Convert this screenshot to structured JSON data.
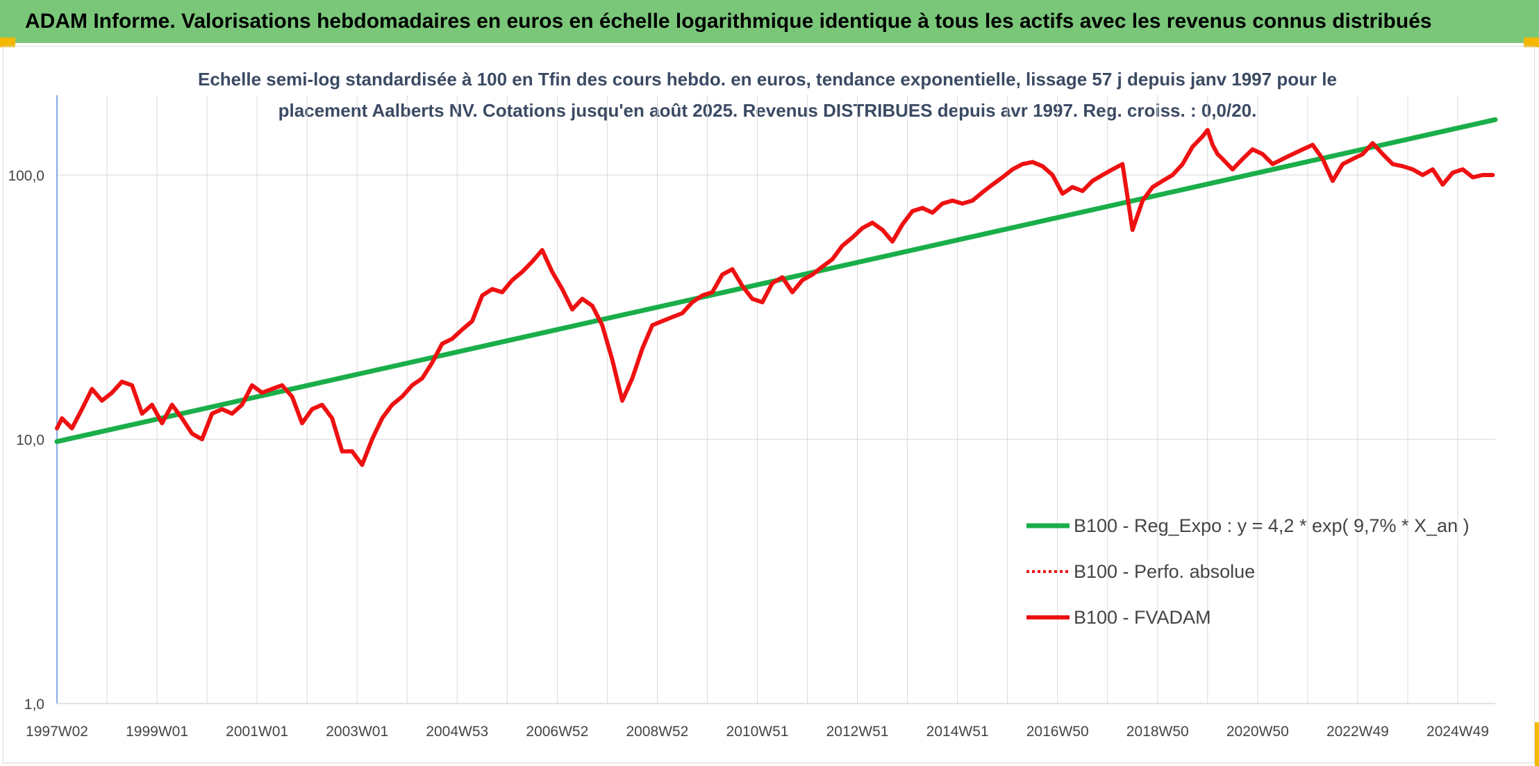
{
  "header": {
    "title": "ADAM Informe. Valorisations hebdomadaires en euros en échelle logarithmique identique à tous les actifs avec les revenus connus distribués"
  },
  "colors": {
    "header_bg": "#7ac77a",
    "trend": "#1aae4a",
    "series": "#ee1111",
    "grid": "#d9d9d9",
    "axis": "#5b8fd6",
    "accent": "#f5b800"
  },
  "chart_data": {
    "type": "line",
    "title_line1": "Echelle semi-log standardisée à 100 en Tfin des cours hebdo. en euros, tendance exponentielle, lissage 57 j depuis janv 1997 pour le",
    "title_line2": "placement Aalberts NV. Cotations jusqu'en août 2025. Revenus DISTRIBUES depuis avr 1997. Reg. croiss. : 0,0/20.",
    "y_scale": "log",
    "ylim": [
      1,
      200
    ],
    "y_ticks": [
      {
        "value": 1,
        "label": "1,0"
      },
      {
        "value": 10,
        "label": "10,0"
      },
      {
        "value": 100,
        "label": "100,0"
      }
    ],
    "xlim": [
      1997.0,
      2025.75
    ],
    "x_ticks": [
      {
        "value": 1997.0,
        "label": "1997W02"
      },
      {
        "value": 1999.0,
        "label": "1999W01"
      },
      {
        "value": 2001.0,
        "label": "2001W01"
      },
      {
        "value": 2003.0,
        "label": "2003W01"
      },
      {
        "value": 2005.0,
        "label": "2004W53"
      },
      {
        "value": 2007.0,
        "label": "2006W52"
      },
      {
        "value": 2009.0,
        "label": "2008W52"
      },
      {
        "value": 2011.0,
        "label": "2010W51"
      },
      {
        "value": 2013.0,
        "label": "2012W51"
      },
      {
        "value": 2015.0,
        "label": "2014W51"
      },
      {
        "value": 2017.0,
        "label": "2016W50"
      },
      {
        "value": 2019.0,
        "label": "2018W50"
      },
      {
        "value": 2021.0,
        "label": "2020W50"
      },
      {
        "value": 2023.0,
        "label": "2022W49"
      },
      {
        "value": 2025.0,
        "label": "2024W49"
      }
    ],
    "x_gridlines": [
      1997.0,
      1998.0,
      1999.0,
      2000.0,
      2001.0,
      2002.0,
      2003.0,
      2004.0,
      2005.0,
      2006.0,
      2007.0,
      2008.0,
      2009.0,
      2010.0,
      2011.0,
      2012.0,
      2013.0,
      2014.0,
      2015.0,
      2016.0,
      2017.0,
      2018.0,
      2019.0,
      2020.0,
      2021.0,
      2022.0,
      2023.0,
      2024.0,
      2025.0
    ],
    "legend_position": "bottom-right",
    "series": [
      {
        "name": "B100 - Reg_Expo : y = 4,2 * exp( 9,7% *  X_an )",
        "style": "solid-green",
        "x": [
          1997.0,
          2025.75
        ],
        "y": [
          9.8,
          162
        ]
      },
      {
        "name": "B100 - Perfo. absolue",
        "style": "dotted-red",
        "x": [],
        "y": []
      },
      {
        "name": "B100 - FVADAM",
        "style": "solid-red",
        "x": [
          1997.0,
          1997.1,
          1997.3,
          1997.5,
          1997.7,
          1997.9,
          1998.1,
          1998.3,
          1998.5,
          1998.7,
          1998.9,
          1999.1,
          1999.3,
          1999.5,
          1999.7,
          1999.9,
          2000.1,
          2000.3,
          2000.5,
          2000.7,
          2000.9,
          2001.1,
          2001.3,
          2001.5,
          2001.7,
          2001.9,
          2002.1,
          2002.3,
          2002.5,
          2002.7,
          2002.9,
          2003.1,
          2003.3,
          2003.5,
          2003.7,
          2003.9,
          2004.1,
          2004.3,
          2004.5,
          2004.7,
          2004.9,
          2005.1,
          2005.3,
          2005.5,
          2005.7,
          2005.9,
          2006.1,
          2006.3,
          2006.5,
          2006.7,
          2006.9,
          2007.1,
          2007.3,
          2007.5,
          2007.7,
          2007.9,
          2008.1,
          2008.3,
          2008.5,
          2008.7,
          2008.9,
          2009.1,
          2009.3,
          2009.5,
          2009.7,
          2009.9,
          2010.1,
          2010.3,
          2010.5,
          2010.7,
          2010.9,
          2011.1,
          2011.3,
          2011.5,
          2011.7,
          2011.9,
          2012.1,
          2012.3,
          2012.5,
          2012.7,
          2012.9,
          2013.1,
          2013.3,
          2013.5,
          2013.7,
          2013.9,
          2014.1,
          2014.3,
          2014.5,
          2014.7,
          2014.9,
          2015.1,
          2015.3,
          2015.5,
          2015.7,
          2015.9,
          2016.1,
          2016.3,
          2016.5,
          2016.7,
          2016.9,
          2017.1,
          2017.3,
          2017.5,
          2017.7,
          2017.9,
          2018.1,
          2018.3,
          2018.5,
          2018.7,
          2018.9,
          2019.1,
          2019.3,
          2019.5,
          2019.7,
          2019.9,
          2020.0,
          2020.1,
          2020.2,
          2020.3,
          2020.5,
          2020.7,
          2020.9,
          2021.1,
          2021.3,
          2021.5,
          2021.7,
          2021.9,
          2022.1,
          2022.3,
          2022.5,
          2022.7,
          2022.9,
          2023.1,
          2023.3,
          2023.5,
          2023.7,
          2023.9,
          2024.1,
          2024.3,
          2024.5,
          2024.7,
          2024.9,
          2025.1,
          2025.3,
          2025.5,
          2025.7
        ],
        "y": [
          11.0,
          12.0,
          11.0,
          13.0,
          15.5,
          14.0,
          15.0,
          16.5,
          16.0,
          12.5,
          13.5,
          11.5,
          13.5,
          12.0,
          10.5,
          10.0,
          12.5,
          13.0,
          12.5,
          13.5,
          16.0,
          15.0,
          15.5,
          16.0,
          14.5,
          11.5,
          13.0,
          13.5,
          12.0,
          9.0,
          9.0,
          8.0,
          10.0,
          12.0,
          13.5,
          14.5,
          16.0,
          17.0,
          19.5,
          23.0,
          24.0,
          26.0,
          28.0,
          35.0,
          37.0,
          36.0,
          40.0,
          43.0,
          47.0,
          52.0,
          43.0,
          37.0,
          31.0,
          34.0,
          32.0,
          27.0,
          20.0,
          14.0,
          17.0,
          22.0,
          27.0,
          28.0,
          29.0,
          30.0,
          33.0,
          35.0,
          36.0,
          42.0,
          44.0,
          38.0,
          34.0,
          33.0,
          39.0,
          41.0,
          36.0,
          40.0,
          42.0,
          45.0,
          48.0,
          54.0,
          58.0,
          63.0,
          66.0,
          62.0,
          56.0,
          65.0,
          73.0,
          75.0,
          72.0,
          78.0,
          80.0,
          78.0,
          80.0,
          86.0,
          92.0,
          98.0,
          105.0,
          110.0,
          112.0,
          108.0,
          100.0,
          85.0,
          90.0,
          87.0,
          95.0,
          100.0,
          105.0,
          110.0,
          62.0,
          80.0,
          90.0,
          95.0,
          100.0,
          110.0,
          128.0,
          140.0,
          148.0,
          130.0,
          120.0,
          115.0,
          105.0,
          115.0,
          125.0,
          120.0,
          110.0,
          115.0,
          120.0,
          125.0,
          130.0,
          115.0,
          95.0,
          110.0,
          115.0,
          120.0,
          132.0,
          120.0,
          110.0,
          108.0,
          105.0,
          100.0,
          105.0,
          92.0,
          102.0,
          105.0,
          98.0,
          100.0,
          100.0
        ]
      }
    ]
  }
}
